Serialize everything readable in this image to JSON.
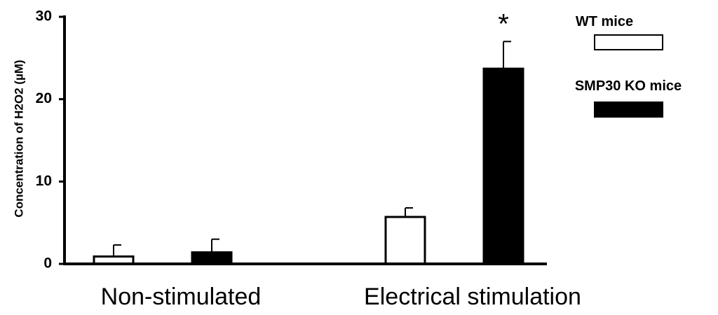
{
  "chart_data": {
    "type": "bar",
    "ylabel": "Concentration of H2O2 (µM)",
    "ylim": [
      0,
      30
    ],
    "yticks": [
      "0",
      "10",
      "20",
      "30"
    ],
    "categories": [
      "Non-stimulated",
      "Electrical stimulation"
    ],
    "series": [
      {
        "name": "WT mice",
        "values": [
          0.9,
          5.7
        ],
        "errors": [
          1.4,
          1.1
        ],
        "color": "#ffffff"
      },
      {
        "name": "SMP30 KO mice",
        "values": [
          1.4,
          23.7
        ],
        "errors": [
          1.6,
          3.3
        ],
        "color": "#000000"
      }
    ],
    "annotations": [
      {
        "text": "*",
        "category": 1,
        "series": 1
      }
    ],
    "legend": "top-right",
    "grid": false
  }
}
